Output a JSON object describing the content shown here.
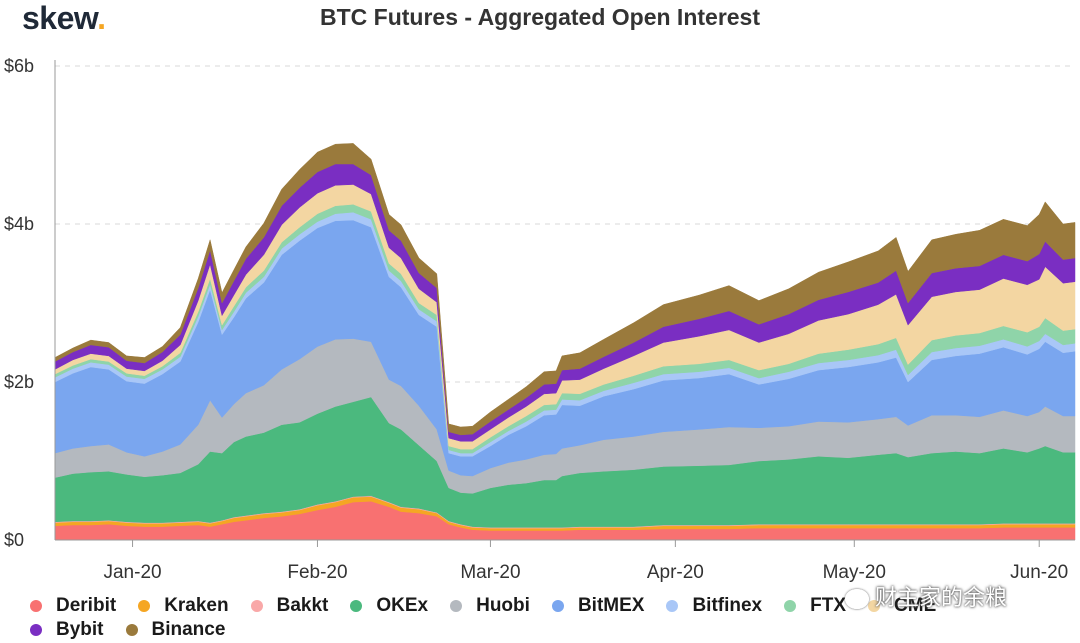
{
  "header": {
    "logo": "skew",
    "logo_dot": "."
  },
  "watermark": "财主家的余粮",
  "chart_data": {
    "type": "area",
    "stacked": true,
    "title": "BTC Futures - Aggregated Open Interest",
    "xlabel": "",
    "ylabel": "",
    "ylim": [
      0,
      6
    ],
    "yticks": [
      0,
      2,
      4,
      6
    ],
    "ytick_labels": [
      "$0",
      "$2b",
      "$4b",
      "$6b"
    ],
    "x": [
      "2019-12-19",
      "2019-12-22",
      "2019-12-25",
      "2019-12-28",
      "2019-12-31",
      "2020-01-03",
      "2020-01-06",
      "2020-01-09",
      "2020-01-12",
      "2020-01-14",
      "2020-01-16",
      "2020-01-18",
      "2020-01-20",
      "2020-01-23",
      "2020-01-26",
      "2020-01-29",
      "2020-02-01",
      "2020-02-04",
      "2020-02-07",
      "2020-02-10",
      "2020-02-13",
      "2020-02-15",
      "2020-02-18",
      "2020-02-21",
      "2020-02-23",
      "2020-02-25",
      "2020-02-27",
      "2020-03-01",
      "2020-03-04",
      "2020-03-07",
      "2020-03-10",
      "2020-03-12",
      "2020-03-13",
      "2020-03-16",
      "2020-03-20",
      "2020-03-25",
      "2020-03-30",
      "2020-04-05",
      "2020-04-10",
      "2020-04-15",
      "2020-04-20",
      "2020-04-25",
      "2020-04-30",
      "2020-05-05",
      "2020-05-08",
      "2020-05-10",
      "2020-05-14",
      "2020-05-18",
      "2020-05-22",
      "2020-05-26",
      "2020-05-30",
      "2020-06-01",
      "2020-06-02",
      "2020-06-05",
      "2020-06-07"
    ],
    "xticks": [
      "2020-01-01",
      "2020-02-01",
      "2020-03-01",
      "2020-04-01",
      "2020-05-01",
      "2020-06-01"
    ],
    "xtick_labels": [
      "Jan-20",
      "Feb-20",
      "Mar-20",
      "Apr-20",
      "May-20",
      "Jun-20"
    ],
    "series": [
      {
        "name": "Deribit",
        "color": "#f87171",
        "values": [
          0.18,
          0.19,
          0.19,
          0.2,
          0.18,
          0.17,
          0.17,
          0.18,
          0.19,
          0.17,
          0.2,
          0.23,
          0.25,
          0.28,
          0.3,
          0.33,
          0.38,
          0.42,
          0.48,
          0.49,
          0.42,
          0.36,
          0.34,
          0.3,
          0.2,
          0.16,
          0.13,
          0.12,
          0.12,
          0.12,
          0.12,
          0.12,
          0.12,
          0.13,
          0.13,
          0.13,
          0.14,
          0.14,
          0.14,
          0.15,
          0.15,
          0.15,
          0.15,
          0.15,
          0.15,
          0.15,
          0.15,
          0.15,
          0.15,
          0.16,
          0.16,
          0.16,
          0.16,
          0.16,
          0.16
        ]
      },
      {
        "name": "Kraken",
        "color": "#f5a623",
        "values": [
          0.04,
          0.04,
          0.04,
          0.04,
          0.04,
          0.04,
          0.04,
          0.04,
          0.04,
          0.04,
          0.04,
          0.05,
          0.05,
          0.05,
          0.05,
          0.05,
          0.06,
          0.06,
          0.06,
          0.06,
          0.05,
          0.05,
          0.05,
          0.04,
          0.03,
          0.03,
          0.03,
          0.03,
          0.03,
          0.03,
          0.03,
          0.03,
          0.03,
          0.03,
          0.03,
          0.03,
          0.04,
          0.04,
          0.04,
          0.04,
          0.04,
          0.04,
          0.04,
          0.04,
          0.04,
          0.04,
          0.04,
          0.04,
          0.04,
          0.04,
          0.04,
          0.04,
          0.04,
          0.04,
          0.04
        ]
      },
      {
        "name": "Bakkt",
        "color": "#f9a8a8",
        "values": [
          0.01,
          0.01,
          0.01,
          0.01,
          0.01,
          0.01,
          0.01,
          0.01,
          0.01,
          0.01,
          0.01,
          0.01,
          0.01,
          0.01,
          0.01,
          0.01,
          0.01,
          0.01,
          0.01,
          0.01,
          0.01,
          0.01,
          0.01,
          0.01,
          0.01,
          0.01,
          0.01,
          0.01,
          0.01,
          0.01,
          0.01,
          0.01,
          0.01,
          0.01,
          0.01,
          0.01,
          0.01,
          0.01,
          0.01,
          0.01,
          0.01,
          0.01,
          0.01,
          0.01,
          0.01,
          0.01,
          0.01,
          0.01,
          0.01,
          0.01,
          0.01,
          0.01,
          0.01,
          0.01,
          0.01
        ]
      },
      {
        "name": "OKEx",
        "color": "#4bb97e",
        "values": [
          0.56,
          0.6,
          0.62,
          0.62,
          0.6,
          0.58,
          0.6,
          0.62,
          0.72,
          0.9,
          0.85,
          0.95,
          1.0,
          1.02,
          1.1,
          1.1,
          1.15,
          1.2,
          1.2,
          1.25,
          1.0,
          0.98,
          0.8,
          0.65,
          0.42,
          0.4,
          0.42,
          0.5,
          0.54,
          0.56,
          0.6,
          0.6,
          0.65,
          0.68,
          0.7,
          0.72,
          0.74,
          0.75,
          0.76,
          0.8,
          0.82,
          0.86,
          0.84,
          0.88,
          0.9,
          0.85,
          0.9,
          0.92,
          0.9,
          0.95,
          0.9,
          0.95,
          0.98,
          0.9,
          0.9
        ]
      },
      {
        "name": "Huobi",
        "color": "#b4b9bf",
        "values": [
          0.31,
          0.32,
          0.33,
          0.34,
          0.28,
          0.26,
          0.3,
          0.36,
          0.5,
          0.65,
          0.45,
          0.48,
          0.55,
          0.6,
          0.7,
          0.8,
          0.85,
          0.85,
          0.8,
          0.7,
          0.55,
          0.55,
          0.5,
          0.4,
          0.22,
          0.22,
          0.22,
          0.25,
          0.28,
          0.3,
          0.32,
          0.33,
          0.35,
          0.35,
          0.4,
          0.42,
          0.44,
          0.46,
          0.48,
          0.42,
          0.42,
          0.44,
          0.45,
          0.45,
          0.46,
          0.4,
          0.48,
          0.46,
          0.46,
          0.48,
          0.46,
          0.46,
          0.5,
          0.46,
          0.46
        ]
      },
      {
        "name": "BitMEX",
        "color": "#7aa6ef",
        "values": [
          0.9,
          0.95,
          1.0,
          0.95,
          0.9,
          0.92,
          0.98,
          1.05,
          1.3,
          1.4,
          1.05,
          1.1,
          1.2,
          1.3,
          1.45,
          1.5,
          1.5,
          1.5,
          1.5,
          1.45,
          1.3,
          1.25,
          1.15,
          1.3,
          0.22,
          0.24,
          0.25,
          0.28,
          0.35,
          0.42,
          0.5,
          0.5,
          0.55,
          0.5,
          0.55,
          0.6,
          0.65,
          0.65,
          0.67,
          0.55,
          0.6,
          0.65,
          0.7,
          0.72,
          0.75,
          0.55,
          0.7,
          0.75,
          0.8,
          0.8,
          0.78,
          0.8,
          0.82,
          0.8,
          0.82
        ]
      },
      {
        "name": "Bitfinex",
        "color": "#a9c7f7",
        "values": [
          0.06,
          0.06,
          0.06,
          0.06,
          0.06,
          0.06,
          0.06,
          0.06,
          0.07,
          0.07,
          0.06,
          0.07,
          0.07,
          0.07,
          0.08,
          0.08,
          0.08,
          0.09,
          0.1,
          0.1,
          0.08,
          0.08,
          0.07,
          0.07,
          0.04,
          0.04,
          0.04,
          0.05,
          0.05,
          0.06,
          0.06,
          0.06,
          0.07,
          0.07,
          0.07,
          0.08,
          0.08,
          0.08,
          0.08,
          0.08,
          0.09,
          0.09,
          0.09,
          0.09,
          0.1,
          0.09,
          0.1,
          0.1,
          0.1,
          0.1,
          0.1,
          0.1,
          0.1,
          0.1,
          0.1
        ]
      },
      {
        "name": "FTX",
        "color": "#8fd4a9",
        "values": [
          0.04,
          0.04,
          0.04,
          0.04,
          0.04,
          0.04,
          0.04,
          0.05,
          0.06,
          0.07,
          0.06,
          0.07,
          0.07,
          0.08,
          0.08,
          0.09,
          0.1,
          0.1,
          0.1,
          0.1,
          0.09,
          0.09,
          0.08,
          0.08,
          0.05,
          0.05,
          0.05,
          0.06,
          0.06,
          0.07,
          0.07,
          0.07,
          0.08,
          0.08,
          0.08,
          0.09,
          0.1,
          0.1,
          0.1,
          0.1,
          0.1,
          0.12,
          0.13,
          0.14,
          0.15,
          0.13,
          0.15,
          0.16,
          0.16,
          0.17,
          0.18,
          0.18,
          0.2,
          0.18,
          0.18
        ]
      },
      {
        "name": "CME",
        "color": "#f3d6a2",
        "values": [
          0.06,
          0.07,
          0.07,
          0.07,
          0.06,
          0.06,
          0.07,
          0.1,
          0.14,
          0.18,
          0.12,
          0.14,
          0.16,
          0.2,
          0.22,
          0.25,
          0.26,
          0.26,
          0.25,
          0.22,
          0.2,
          0.2,
          0.18,
          0.16,
          0.1,
          0.1,
          0.1,
          0.1,
          0.11,
          0.12,
          0.14,
          0.14,
          0.16,
          0.18,
          0.2,
          0.25,
          0.3,
          0.35,
          0.38,
          0.35,
          0.38,
          0.42,
          0.45,
          0.5,
          0.55,
          0.5,
          0.55,
          0.55,
          0.55,
          0.6,
          0.6,
          0.6,
          0.65,
          0.6,
          0.6
        ]
      },
      {
        "name": "Bybit",
        "color": "#7a2ec2",
        "values": [
          0.1,
          0.1,
          0.11,
          0.11,
          0.1,
          0.1,
          0.11,
          0.13,
          0.16,
          0.18,
          0.16,
          0.18,
          0.2,
          0.22,
          0.24,
          0.25,
          0.27,
          0.27,
          0.26,
          0.24,
          0.22,
          0.22,
          0.2,
          0.18,
          0.08,
          0.08,
          0.09,
          0.1,
          0.1,
          0.11,
          0.12,
          0.12,
          0.13,
          0.14,
          0.15,
          0.17,
          0.2,
          0.22,
          0.24,
          0.23,
          0.25,
          0.26,
          0.28,
          0.28,
          0.3,
          0.28,
          0.3,
          0.3,
          0.3,
          0.3,
          0.3,
          0.32,
          0.32,
          0.3,
          0.3
        ]
      },
      {
        "name": "Binance",
        "color": "#9a7a3c",
        "values": [
          0.05,
          0.05,
          0.06,
          0.06,
          0.06,
          0.07,
          0.07,
          0.09,
          0.12,
          0.13,
          0.13,
          0.14,
          0.15,
          0.18,
          0.21,
          0.23,
          0.25,
          0.25,
          0.26,
          0.2,
          0.2,
          0.2,
          0.19,
          0.18,
          0.1,
          0.1,
          0.1,
          0.12,
          0.13,
          0.14,
          0.16,
          0.16,
          0.18,
          0.2,
          0.22,
          0.25,
          0.28,
          0.3,
          0.32,
          0.3,
          0.32,
          0.35,
          0.38,
          0.4,
          0.42,
          0.4,
          0.42,
          0.43,
          0.45,
          0.45,
          0.45,
          0.5,
          0.5,
          0.45,
          0.45
        ]
      }
    ],
    "legend_rows": [
      [
        "Deribit",
        "Kraken",
        "Bakkt",
        "OKEx",
        "Huobi",
        "BitMEX",
        "Bitfinex",
        "FTX",
        "CME"
      ],
      [
        "Bybit",
        "Binance"
      ]
    ],
    "grid": "horizontal-dashed",
    "legend": "bottom"
  }
}
